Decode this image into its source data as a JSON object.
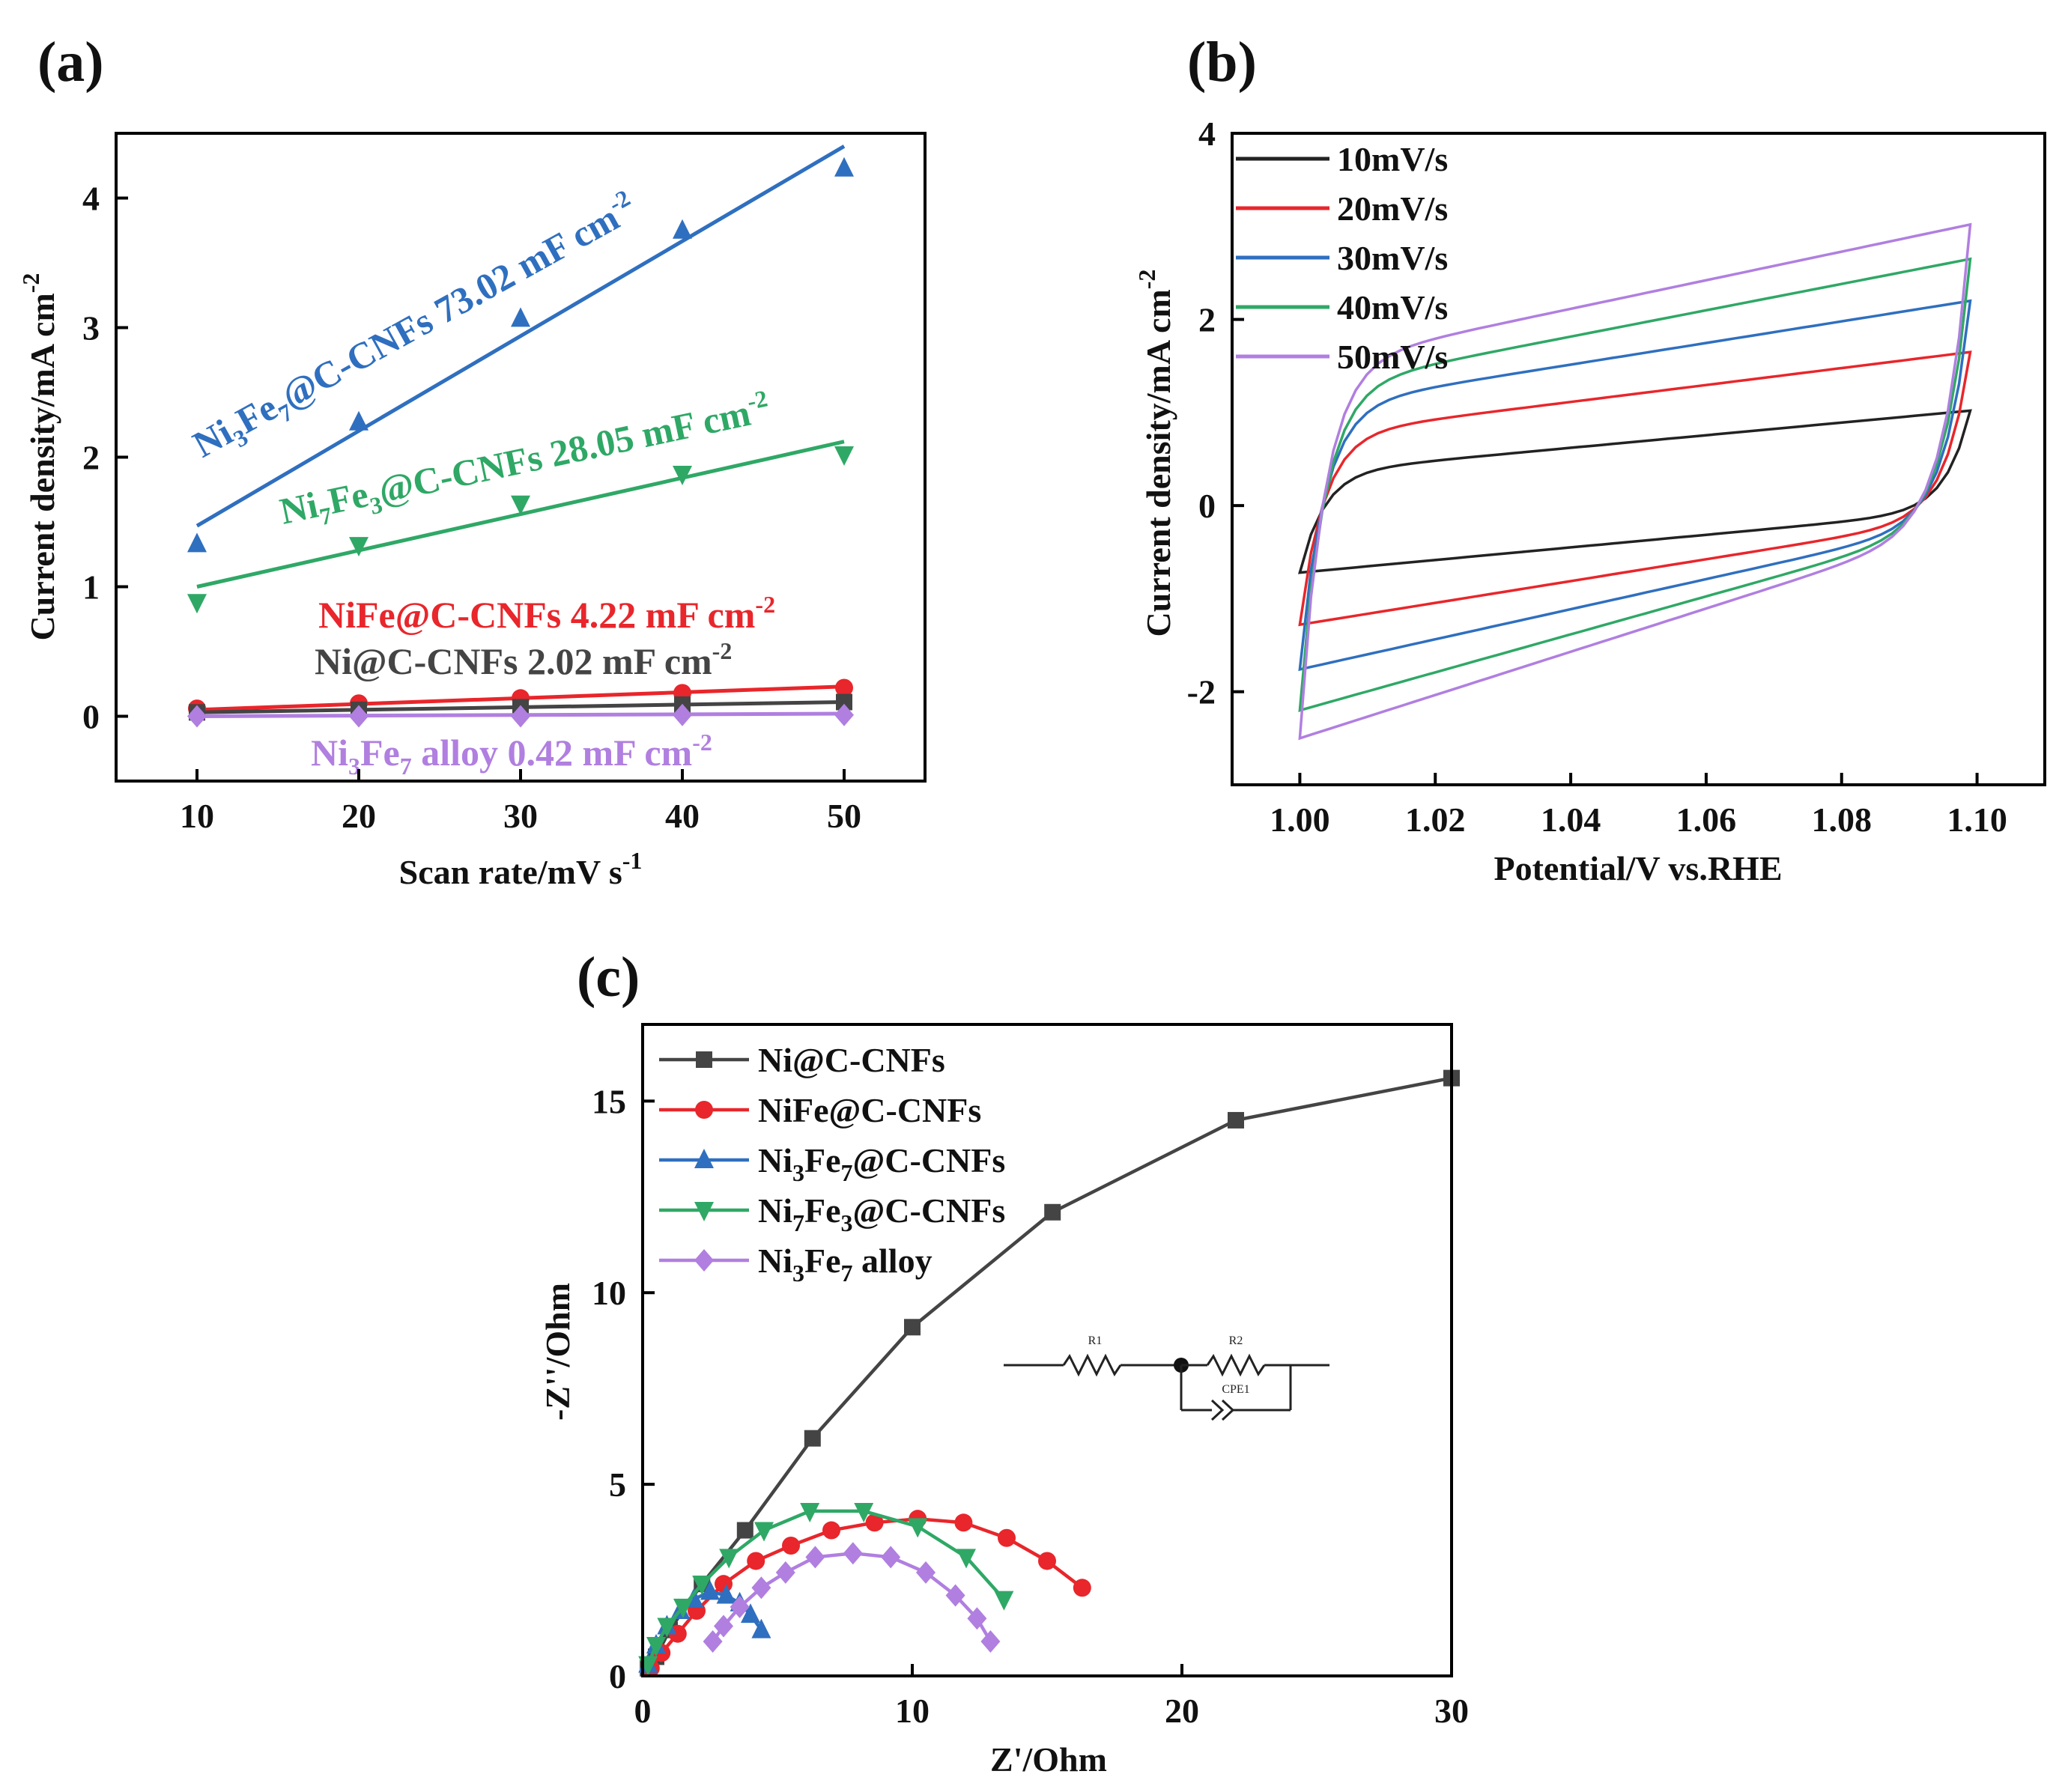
{
  "colors": {
    "black": "#444444",
    "red": "#e8262b",
    "blue": "#2f6fbf",
    "green": "#2fa866",
    "purple": "#b07fe0"
  },
  "chart_data": [
    {
      "id": "a",
      "panel_label": "(a)",
      "type": "scatter",
      "xlabel": "Scan rate/mV s",
      "xlabel_sup": "-1",
      "ylabel": "Current density/mA cm",
      "ylabel_sup": "-2",
      "xlim": [
        5,
        55
      ],
      "ylim": [
        -0.5,
        4.5
      ],
      "xticks": [
        10,
        20,
        30,
        40,
        50
      ],
      "yticks": [
        0,
        1,
        2,
        3,
        4
      ],
      "series": [
        {
          "key": "ni3fe7",
          "color": "#2f6fbf",
          "marker": "triangle-up",
          "x": [
            10,
            20,
            30,
            40,
            50
          ],
          "y": [
            1.33,
            2.27,
            3.07,
            3.75,
            4.23
          ],
          "fit": [
            [
              10,
              1.47
            ],
            [
              50,
              4.4
            ]
          ],
          "label_parts": [
            "Ni",
            "3",
            "Fe",
            "7",
            "@C-CNFs 73.02 mF cm",
            "-2"
          ],
          "label_styles": [
            "t",
            "sub",
            "t",
            "sub",
            "t",
            "sup"
          ],
          "label_angle": -29
        },
        {
          "key": "ni7fe3",
          "color": "#2fa866",
          "marker": "triangle-down",
          "x": [
            10,
            20,
            30,
            40,
            50
          ],
          "y": [
            0.88,
            1.32,
            1.64,
            1.87,
            2.02
          ],
          "fit": [
            [
              10,
              1.0
            ],
            [
              50,
              2.12
            ]
          ],
          "label_parts": [
            "Ni",
            "7",
            "Fe",
            "3",
            "@C-CNFs 28.05 mF cm",
            "-2"
          ],
          "label_styles": [
            "t",
            "sub",
            "t",
            "sub",
            "t",
            "sup"
          ],
          "label_angle": -12
        },
        {
          "key": "nife",
          "color": "#e8262b",
          "marker": "circle",
          "x": [
            10,
            20,
            30,
            40,
            50
          ],
          "y": [
            0.06,
            0.1,
            0.14,
            0.18,
            0.22
          ],
          "fit": [
            [
              10,
              0.05
            ],
            [
              50,
              0.23
            ]
          ],
          "label_parts": [
            "NiFe@C-CNFs 4.22 mF cm",
            "-2"
          ],
          "label_styles": [
            "t",
            "sup"
          ],
          "label_angle": 0
        },
        {
          "key": "ni",
          "color": "#444444",
          "marker": "square",
          "x": [
            10,
            20,
            30,
            40,
            50
          ],
          "y": [
            0.03,
            0.05,
            0.07,
            0.09,
            0.11
          ],
          "fit": [
            [
              10,
              0.03
            ],
            [
              50,
              0.11
            ]
          ],
          "label_parts": [
            "Ni@C-CNFs 2.02 mF cm",
            "-2"
          ],
          "label_styles": [
            "t",
            "sup"
          ],
          "label_angle": 0
        },
        {
          "key": "alloy",
          "color": "#b07fe0",
          "marker": "diamond",
          "x": [
            10,
            20,
            30,
            40,
            50
          ],
          "y": [
            0.0,
            0.0,
            0.0,
            0.01,
            0.01
          ],
          "fit": [
            [
              10,
              0.0
            ],
            [
              50,
              0.02
            ]
          ],
          "label_parts": [
            "Ni",
            "3",
            "Fe",
            "7",
            " alloy 0.42 mF cm",
            "-2"
          ],
          "label_styles": [
            "t",
            "sub",
            "t",
            "sub",
            "t",
            "sup"
          ],
          "label_angle": 0
        }
      ]
    },
    {
      "id": "b",
      "panel_label": "(b)",
      "type": "line",
      "xlabel": "Potential/V vs.RHE",
      "ylabel": "Current density/mA cm",
      "ylabel_sup": "-2",
      "xlim": [
        0.99,
        1.11
      ],
      "ylim": [
        -3,
        4
      ],
      "xticks": [
        "1.00",
        "1.02",
        "1.04",
        "1.06",
        "1.08",
        "1.10"
      ],
      "yticks": [
        -2,
        0,
        2,
        4
      ],
      "series": [
        {
          "name": "10mV/s",
          "color": "#222222",
          "top_start": 0.35,
          "top_end": 1.02,
          "bottom_start": -0.72,
          "bottom_end": -0.05
        },
        {
          "name": "20mV/s",
          "color": "#e8262b",
          "top_start": 0.75,
          "top_end": 1.65,
          "bottom_start": -1.28,
          "bottom_end": -0.12
        },
        {
          "name": "30mV/s",
          "color": "#2f6fbf",
          "top_start": 1.05,
          "top_end": 2.2,
          "bottom_start": -1.76,
          "bottom_end": -0.16
        },
        {
          "name": "40mV/s",
          "color": "#2fa866",
          "top_start": 1.25,
          "top_end": 2.65,
          "bottom_start": -2.2,
          "bottom_end": -0.18
        },
        {
          "name": "50mV/s",
          "color": "#b07fe0",
          "top_start": 1.5,
          "top_end": 3.02,
          "bottom_start": -2.5,
          "bottom_end": -0.2
        }
      ]
    },
    {
      "id": "c",
      "panel_label": "(c)",
      "type": "line",
      "xlabel": "Z'/Ohm",
      "ylabel": "-Z''/Ohm",
      "xlim": [
        0,
        30
      ],
      "ylim": [
        0,
        17
      ],
      "xticks": [
        0,
        10,
        20,
        30
      ],
      "yticks": [
        0,
        5,
        10,
        15
      ],
      "series": [
        {
          "key": "ni",
          "color": "#444444",
          "marker": "square",
          "label_parts": [
            "Ni@C-CNFs"
          ],
          "label_styles": [
            "t"
          ],
          "x": [
            0.2,
            0.5,
            1.0,
            2.2,
            3.8,
            6.3,
            10.0,
            15.2,
            22.0,
            30.0
          ],
          "y": [
            0.2,
            0.5,
            1.2,
            2.4,
            3.8,
            6.2,
            9.1,
            12.1,
            14.5,
            15.6
          ]
        },
        {
          "key": "nife",
          "color": "#e8262b",
          "marker": "circle",
          "label_parts": [
            "NiFe@C-CNFs"
          ],
          "label_styles": [
            "t"
          ],
          "x": [
            0.3,
            0.7,
            1.3,
            2.0,
            3.0,
            4.2,
            5.5,
            7.0,
            8.6,
            10.2,
            11.9,
            13.5,
            15.0,
            16.3
          ],
          "y": [
            0.2,
            0.6,
            1.1,
            1.7,
            2.4,
            3.0,
            3.4,
            3.8,
            4.0,
            4.1,
            4.0,
            3.6,
            3.0,
            2.3
          ]
        },
        {
          "key": "ni3fe7",
          "color": "#2f6fbf",
          "marker": "triangle-up",
          "label_parts": [
            "Ni",
            "3",
            "Fe",
            "7",
            "@C-CNFs"
          ],
          "label_styles": [
            "t",
            "sub",
            "t",
            "sub",
            "t"
          ],
          "x": [
            0.2,
            0.5,
            0.9,
            1.4,
            1.9,
            2.5,
            3.1,
            3.6,
            4.0,
            4.4
          ],
          "y": [
            0.3,
            0.8,
            1.3,
            1.7,
            2.0,
            2.2,
            2.1,
            1.9,
            1.6,
            1.2
          ]
        },
        {
          "key": "ni7fe3",
          "color": "#2fa866",
          "marker": "triangle-down",
          "label_parts": [
            "Ni",
            "7",
            "Fe",
            "3",
            "@C-CNFs"
          ],
          "label_styles": [
            "t",
            "sub",
            "t",
            "sub",
            "t"
          ],
          "x": [
            0.2,
            0.5,
            0.9,
            1.5,
            2.2,
            3.2,
            4.5,
            6.2,
            8.2,
            10.2,
            12.0,
            13.4
          ],
          "y": [
            0.3,
            0.8,
            1.3,
            1.8,
            2.4,
            3.1,
            3.8,
            4.3,
            4.3,
            3.9,
            3.1,
            2.0
          ]
        },
        {
          "key": "alloy",
          "color": "#b07fe0",
          "marker": "diamond",
          "label_parts": [
            "Ni",
            "3",
            "Fe",
            "7",
            " alloy"
          ],
          "label_styles": [
            "t",
            "sub",
            "t",
            "sub",
            "t"
          ],
          "x": [
            2.6,
            3.0,
            3.6,
            4.4,
            5.3,
            6.4,
            7.8,
            9.2,
            10.5,
            11.6,
            12.4,
            12.9
          ],
          "y": [
            0.9,
            1.3,
            1.8,
            2.3,
            2.7,
            3.1,
            3.2,
            3.1,
            2.7,
            2.1,
            1.5,
            0.9
          ]
        }
      ],
      "circuit": {
        "elements": [
          "R1",
          "R2",
          "CPE1"
        ]
      }
    }
  ]
}
